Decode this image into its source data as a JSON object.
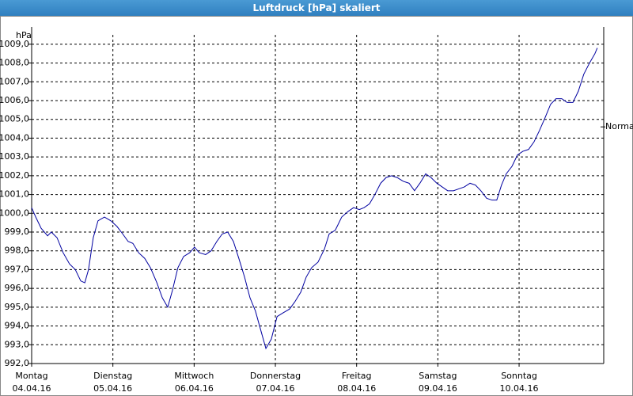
{
  "chart_data": {
    "type": "line",
    "title": "Luftdruck [hPa] skaliert",
    "y_label": "hPa",
    "xlim": [
      0,
      169
    ],
    "ylim": [
      992,
      1009.5
    ],
    "xticks": [
      {
        "value": 0,
        "label": "Montag",
        "date": "04.04.16"
      },
      {
        "value": 24,
        "label": "Dienstag",
        "date": "05.04.16"
      },
      {
        "value": 48,
        "label": "Mittwoch",
        "date": "06.04.16"
      },
      {
        "value": 72,
        "label": "Donnerstag",
        "date": "07.04.16"
      },
      {
        "value": 96,
        "label": "Freitag",
        "date": "08.04.16"
      },
      {
        "value": 120,
        "label": "Samstag",
        "date": "09.04.16"
      },
      {
        "value": 144,
        "label": "Sonntag",
        "date": "10.04.16"
      }
    ],
    "yticks": [
      {
        "value": 992,
        "label": "992,0"
      },
      {
        "value": 993,
        "label": "993,0"
      },
      {
        "value": 994,
        "label": "994,0"
      },
      {
        "value": 995,
        "label": "995,0"
      },
      {
        "value": 996,
        "label": "996,0"
      },
      {
        "value": 997,
        "label": "997,0"
      },
      {
        "value": 998,
        "label": "998,0"
      },
      {
        "value": 999,
        "label": "999,0"
      },
      {
        "value": 1000,
        "label": "1000,0"
      },
      {
        "value": 1001,
        "label": "1001,0"
      },
      {
        "value": 1002,
        "label": "1002,0"
      },
      {
        "value": 1003,
        "label": "1003,0"
      },
      {
        "value": 1004,
        "label": "1004,0"
      },
      {
        "value": 1005,
        "label": "1005,0"
      },
      {
        "value": 1006,
        "label": "1006,0"
      },
      {
        "value": 1007,
        "label": "1007,0"
      },
      {
        "value": 1008,
        "label": "1008,0"
      },
      {
        "value": 1009,
        "label": "1009,0"
      }
    ],
    "grid": true,
    "annotations": [
      {
        "text": "Normal",
        "y": 1004.6
      }
    ],
    "x": [
      0,
      1.2,
      2.8,
      4.7,
      5.8,
      7.5,
      9.3,
      11.2,
      12.9,
      14.5,
      15.7,
      16.8,
      18.2,
      19.6,
      21.5,
      23.4,
      25.2,
      26.9,
      28.5,
      29.9,
      31.6,
      33.4,
      35.1,
      37.0,
      38.6,
      40.2,
      41.6,
      43.2,
      44.9,
      46.7,
      48.1,
      49.5,
      51.4,
      53.0,
      54.7,
      56.3,
      57.9,
      59.6,
      61.2,
      62.9,
      64.5,
      66.1,
      67.8,
      69.2,
      70.8,
      72.5,
      74.3,
      76.2,
      77.8,
      79.5,
      81.1,
      82.7,
      84.6,
      86.5,
      87.9,
      89.7,
      91.6,
      93.5,
      95.1,
      96.8,
      98.2,
      99.8,
      101.4,
      103.1,
      104.7,
      106.3,
      108.0,
      109.8,
      111.5,
      113.1,
      114.7,
      116.4,
      118.0,
      119.7,
      121.3,
      122.9,
      124.6,
      126.2,
      127.8,
      129.5,
      131.1,
      132.7,
      134.4,
      136.0,
      137.4,
      138.8,
      140.2,
      141.9,
      143.5,
      145.1,
      146.8,
      148.4,
      150.0,
      151.7,
      153.3,
      154.9,
      156.6,
      158.2,
      159.9,
      161.5,
      163.1,
      164.8,
      166.4,
      167.1
    ],
    "series": [
      {
        "name": "Luftdruck",
        "color": "#0000a0",
        "values": [
          1000.3,
          999.8,
          999.2,
          998.8,
          999.0,
          998.7,
          997.9,
          997.3,
          997.0,
          996.4,
          996.3,
          997.0,
          998.7,
          999.6,
          999.8,
          999.6,
          999.3,
          998.9,
          998.5,
          998.4,
          997.9,
          997.6,
          997.1,
          996.3,
          995.5,
          995.0,
          995.9,
          997.1,
          997.7,
          997.9,
          998.2,
          997.9,
          997.8,
          998.0,
          998.5,
          998.9,
          999.0,
          998.5,
          997.6,
          996.6,
          995.5,
          994.8,
          993.7,
          992.8,
          993.3,
          994.5,
          994.7,
          994.9,
          995.3,
          995.8,
          996.6,
          997.1,
          997.4,
          998.1,
          998.9,
          999.1,
          999.8,
          1000.1,
          1000.3,
          1000.2,
          1000.3,
          1000.5,
          1001.0,
          1001.6,
          1001.9,
          1002.0,
          1001.9,
          1001.7,
          1001.6,
          1001.2,
          1001.6,
          1002.1,
          1001.9,
          1001.6,
          1001.4,
          1001.2,
          1001.2,
          1001.3,
          1001.4,
          1001.6,
          1001.5,
          1001.2,
          1000.8,
          1000.7,
          1000.7,
          1001.5,
          1002.1,
          1002.5,
          1003.1,
          1003.3,
          1003.4,
          1003.8,
          1004.4,
          1005.1,
          1005.8,
          1006.1,
          1006.1,
          1005.9,
          1005.9,
          1006.5,
          1007.4,
          1008.0,
          1008.5,
          1008.8
        ]
      }
    ]
  }
}
